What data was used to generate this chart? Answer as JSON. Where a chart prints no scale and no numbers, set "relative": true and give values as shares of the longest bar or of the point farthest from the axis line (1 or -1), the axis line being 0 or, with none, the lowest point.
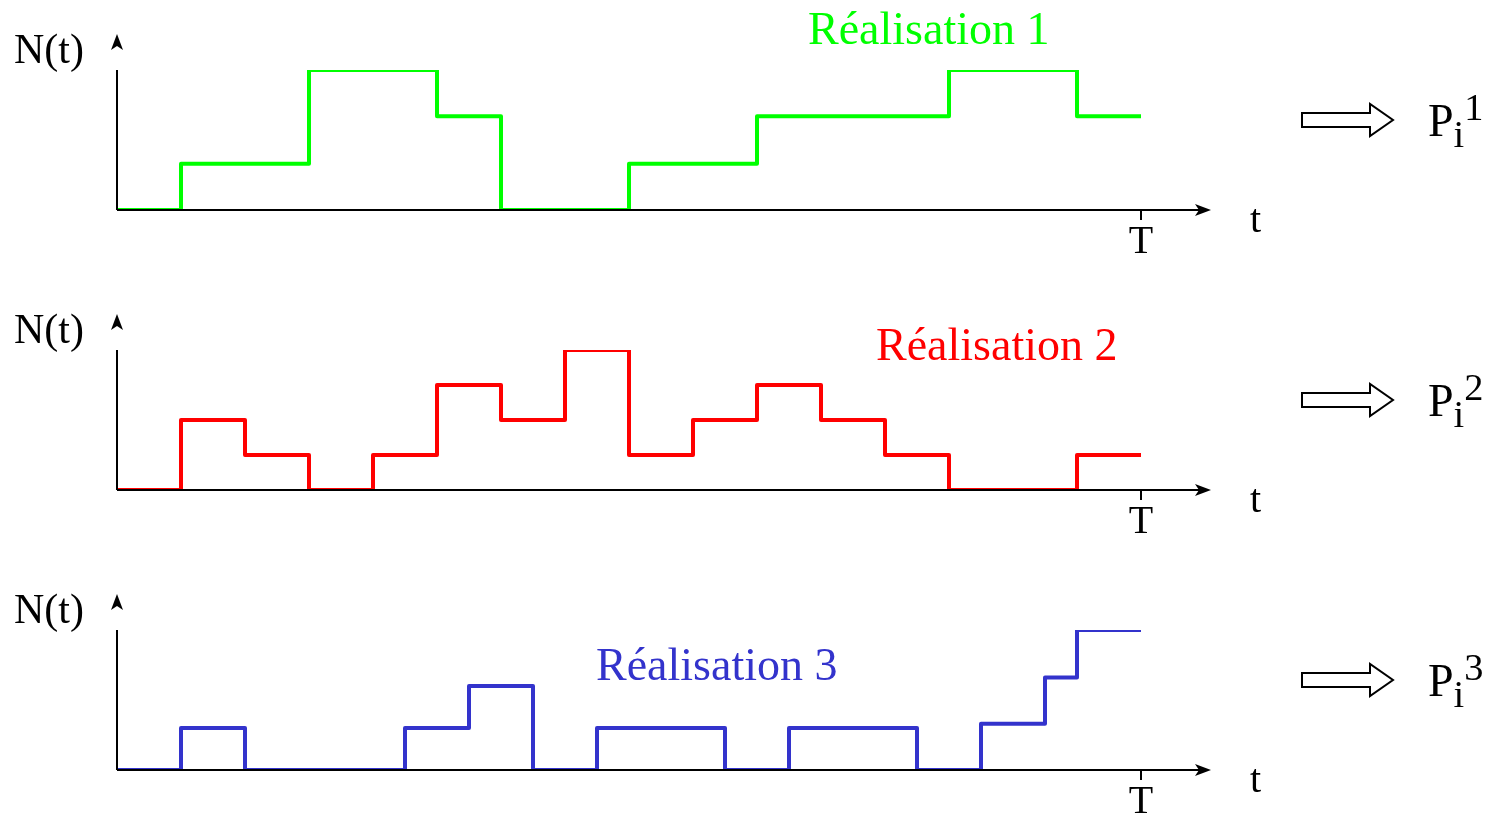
{
  "chart_data": [
    {
      "type": "step",
      "ylabel": "N(t)",
      "xlabel": "t",
      "relative": true,
      "annotations": [
        "T",
        "P$_{i}$$^{1}$"
      ],
      "categories": [
        null,
        null,
        null,
        null,
        null,
        null,
        null,
        null,
        null,
        null,
        null,
        null,
        null,
        null,
        null,
        null,
        null
      ],
      "series": [
        {
          "name": "Réalisation 1",
          "color": "#00ff00",
          "values": [
            0,
            0.33,
            0.33,
            1,
            1,
            0.67,
            0,
            0,
            0.33,
            0.33,
            0.67,
            0.67,
            0.67,
            1,
            1,
            0.67,
            0.67
          ]
        }
      ]
    },
    {
      "type": "step",
      "ylabel": "N(t)",
      "xlabel": "t",
      "relative": true,
      "annotations": [
        "T",
        "P$_{i}$$^{2}$"
      ],
      "categories": [
        null,
        null,
        null,
        null,
        null,
        null,
        null,
        null,
        null,
        null,
        null,
        null,
        null,
        null,
        null,
        null,
        null
      ],
      "series": [
        {
          "name": "Réalisation 2",
          "color": "#ff0000",
          "values": [
            0,
            0.5,
            0.25,
            0,
            0.25,
            0.75,
            0.5,
            1,
            0.25,
            0.5,
            0.75,
            0.5,
            0.25,
            0,
            0,
            0.25,
            0.25
          ]
        }
      ]
    },
    {
      "type": "step",
      "ylabel": "N(t)",
      "xlabel": "t",
      "relative": true,
      "annotations": [
        "T",
        "P$_{i}$$^{3}$"
      ],
      "categories": [
        null,
        null,
        null,
        null,
        null,
        null,
        null,
        null,
        null,
        null,
        null,
        null,
        null,
        null,
        null,
        null,
        null,
        null,
        null,
        null,
        null,
        null,
        null,
        null,
        null,
        null,
        null,
        null,
        null,
        null,
        null,
        null,
        null
      ],
      "series": [
        {
          "name": "Réalisation 3",
          "color": "#3333cc",
          "values": [
            0,
            0,
            0.3,
            0.3,
            0,
            0,
            0,
            0,
            0,
            0.3,
            0.3,
            0.6,
            0.6,
            0,
            0,
            0.3,
            0.3,
            0.3,
            0.3,
            0,
            0,
            0.3,
            0.3,
            0.3,
            0.3,
            0,
            0,
            0.33,
            0.33,
            0.66,
            1,
            1,
            1
          ]
        }
      ]
    }
  ]
}
